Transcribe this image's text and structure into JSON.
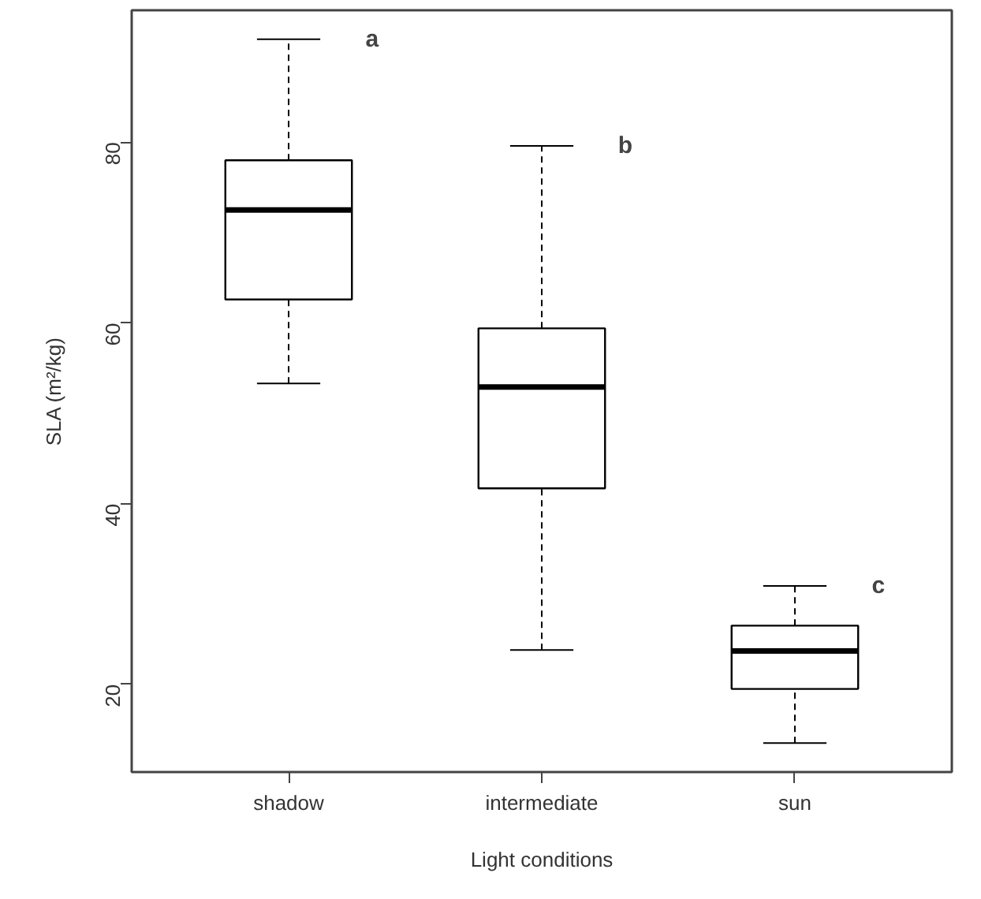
{
  "chart_data": {
    "type": "box",
    "xlabel": "Light conditions",
    "ylabel": "SLA (m²/kg)",
    "categories": [
      "shadow",
      "intermediate",
      "sun"
    ],
    "boxes": [
      {
        "low": 53.3,
        "q1": 62.6,
        "median": 72.5,
        "q3": 78.0,
        "high": 91.4
      },
      {
        "low": 23.8,
        "q1": 41.7,
        "median": 52.9,
        "q3": 59.4,
        "high": 79.6
      },
      {
        "low": 13.5,
        "q1": 19.5,
        "median": 23.7,
        "q3": 26.5,
        "high": 30.9
      }
    ],
    "color": "#ffffff",
    "ylim": [
      10.3,
      94.6
    ],
    "yticks": [
      20,
      40,
      60,
      80
    ],
    "grid": false,
    "line_style": "dashed",
    "annotations": [
      "a",
      "b",
      "c"
    ]
  }
}
